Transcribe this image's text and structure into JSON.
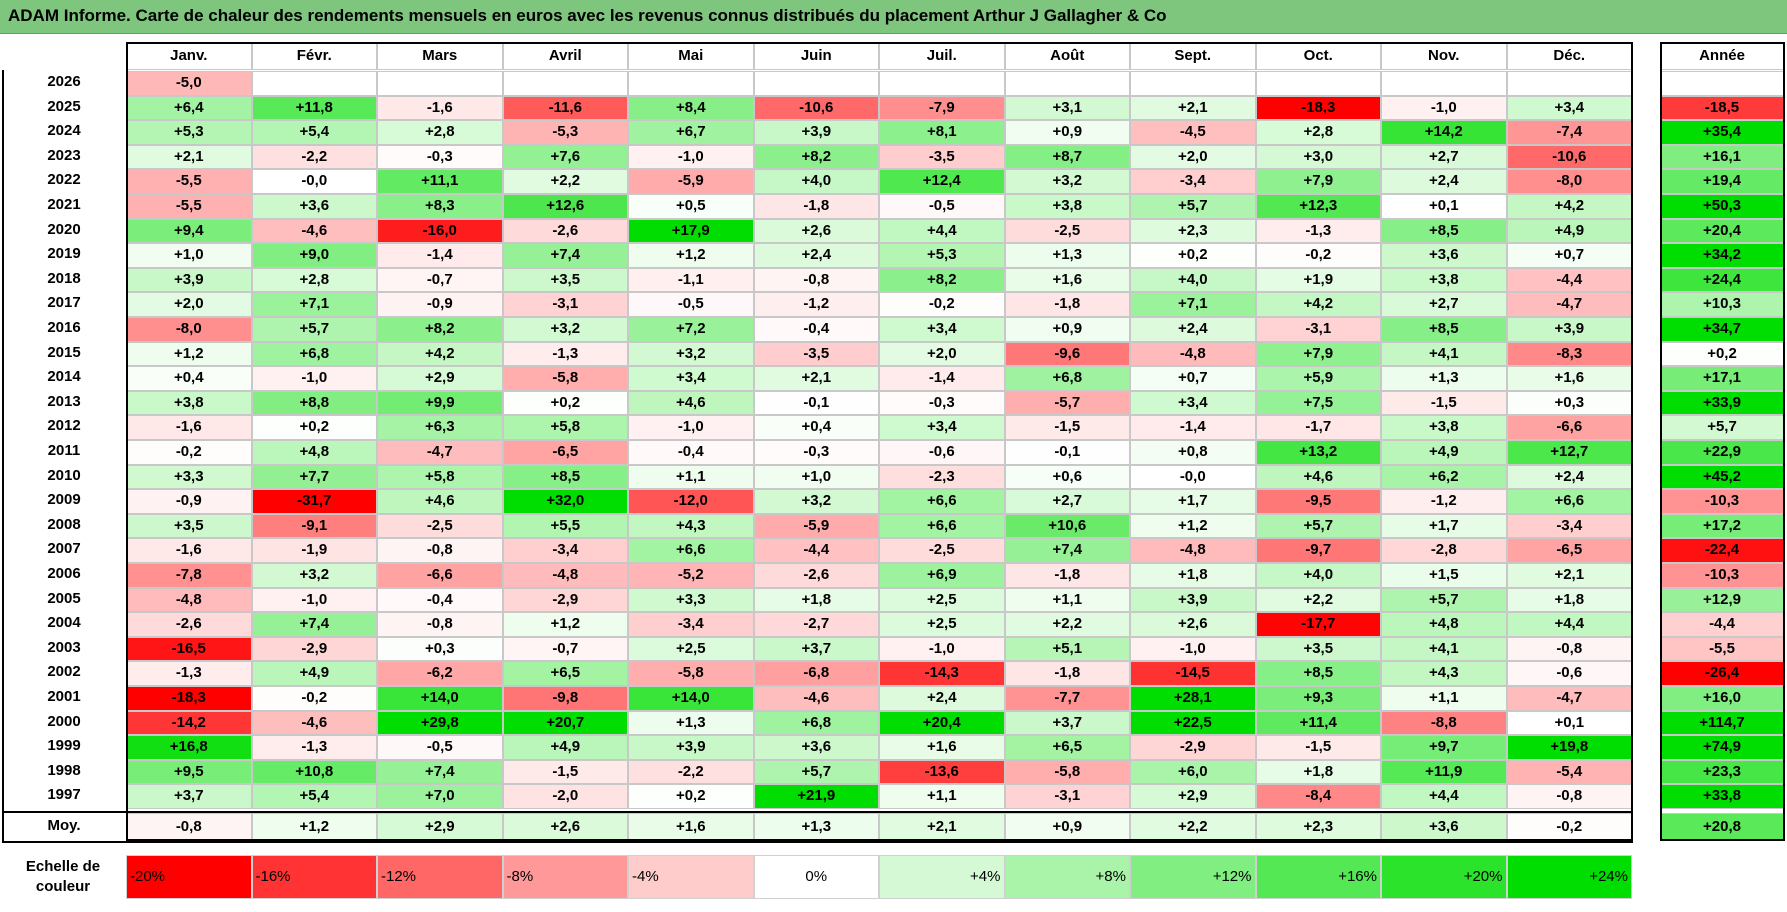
{
  "title": "ADAM Informe. Carte de chaleur des rendements mensuels en euros avec les revenus connus distribués du placement Arthur J Gallagher & Co",
  "chart_data": {
    "type": "heatmap",
    "months": [
      "Janv.",
      "Févr.",
      "Mars",
      "Avril",
      "Mai",
      "Juin",
      "Juil.",
      "Août",
      "Sept.",
      "Oct.",
      "Nov.",
      "Déc."
    ],
    "year_header": "Année",
    "rows": [
      {
        "year": "2026",
        "values": [
          "-5,0",
          "",
          "",
          "",
          "",
          "",
          "",
          "",
          "",
          "",
          "",
          ""
        ],
        "annual": ""
      },
      {
        "year": "2025",
        "values": [
          "+6,4",
          "+11,8",
          "-1,6",
          "-11,6",
          "+8,4",
          "-10,6",
          "-7,9",
          "+3,1",
          "+2,1",
          "-18,3",
          "-1,0",
          "+3,4"
        ],
        "annual": "-18,5"
      },
      {
        "year": "2024",
        "values": [
          "+5,3",
          "+5,4",
          "+2,8",
          "-5,3",
          "+6,7",
          "+3,9",
          "+8,1",
          "+0,9",
          "-4,5",
          "+2,8",
          "+14,2",
          "-7,4"
        ],
        "annual": "+35,4"
      },
      {
        "year": "2023",
        "values": [
          "+2,1",
          "-2,2",
          "-0,3",
          "+7,6",
          "-1,0",
          "+8,2",
          "-3,5",
          "+8,7",
          "+2,0",
          "+3,0",
          "+2,7",
          "-10,6"
        ],
        "annual": "+16,1"
      },
      {
        "year": "2022",
        "values": [
          "-5,5",
          "-0,0",
          "+11,1",
          "+2,2",
          "-5,9",
          "+4,0",
          "+12,4",
          "+3,2",
          "-3,4",
          "+7,9",
          "+2,4",
          "-8,0"
        ],
        "annual": "+19,4"
      },
      {
        "year": "2021",
        "values": [
          "-5,5",
          "+3,6",
          "+8,3",
          "+12,6",
          "+0,5",
          "-1,8",
          "-0,5",
          "+3,8",
          "+5,7",
          "+12,3",
          "+0,1",
          "+4,2"
        ],
        "annual": "+50,3"
      },
      {
        "year": "2020",
        "values": [
          "+9,4",
          "-4,6",
          "-16,0",
          "-2,6",
          "+17,9",
          "+2,6",
          "+4,4",
          "-2,5",
          "+2,3",
          "-1,3",
          "+8,5",
          "+4,9"
        ],
        "annual": "+20,4"
      },
      {
        "year": "2019",
        "values": [
          "+1,0",
          "+9,0",
          "-1,4",
          "+7,4",
          "+1,2",
          "+2,4",
          "+5,3",
          "+1,3",
          "+0,2",
          "-0,2",
          "+3,6",
          "+0,7"
        ],
        "annual": "+34,2"
      },
      {
        "year": "2018",
        "values": [
          "+3,9",
          "+2,8",
          "-0,7",
          "+3,5",
          "-1,1",
          "-0,8",
          "+8,2",
          "+1,6",
          "+4,0",
          "+1,9",
          "+3,8",
          "-4,4"
        ],
        "annual": "+24,4"
      },
      {
        "year": "2017",
        "values": [
          "+2,0",
          "+7,1",
          "-0,9",
          "-3,1",
          "-0,5",
          "-1,2",
          "-0,2",
          "-1,8",
          "+7,1",
          "+4,2",
          "+2,7",
          "-4,7"
        ],
        "annual": "+10,3"
      },
      {
        "year": "2016",
        "values": [
          "-8,0",
          "+5,7",
          "+8,2",
          "+3,2",
          "+7,2",
          "-0,4",
          "+3,4",
          "+0,9",
          "+2,4",
          "-3,1",
          "+8,5",
          "+3,9"
        ],
        "annual": "+34,7"
      },
      {
        "year": "2015",
        "values": [
          "+1,2",
          "+6,8",
          "+4,2",
          "-1,3",
          "+3,2",
          "-3,5",
          "+2,0",
          "-9,6",
          "-4,8",
          "+7,9",
          "+4,1",
          "-8,3"
        ],
        "annual": "+0,2"
      },
      {
        "year": "2014",
        "values": [
          "+0,4",
          "-1,0",
          "+2,9",
          "-5,8",
          "+3,4",
          "+2,1",
          "-1,4",
          "+6,8",
          "+0,7",
          "+5,9",
          "+1,3",
          "+1,6"
        ],
        "annual": "+17,1"
      },
      {
        "year": "2013",
        "values": [
          "+3,8",
          "+8,8",
          "+9,9",
          "+0,2",
          "+4,6",
          "-0,1",
          "-0,3",
          "-5,7",
          "+3,4",
          "+7,5",
          "-1,5",
          "+0,3"
        ],
        "annual": "+33,9"
      },
      {
        "year": "2012",
        "values": [
          "-1,6",
          "+0,2",
          "+6,3",
          "+5,8",
          "-1,0",
          "+0,4",
          "+3,4",
          "-1,5",
          "-1,4",
          "-1,7",
          "+3,8",
          "-6,6"
        ],
        "annual": "+5,7"
      },
      {
        "year": "2011",
        "values": [
          "-0,2",
          "+4,8",
          "-4,7",
          "-6,5",
          "-0,4",
          "-0,3",
          "-0,6",
          "-0,1",
          "+0,8",
          "+13,2",
          "+4,9",
          "+12,7"
        ],
        "annual": "+22,9"
      },
      {
        "year": "2010",
        "values": [
          "+3,3",
          "+7,7",
          "+5,8",
          "+8,5",
          "+1,1",
          "+1,0",
          "-2,3",
          "+0,6",
          "-0,0",
          "+4,6",
          "+6,2",
          "+2,4"
        ],
        "annual": "+45,2"
      },
      {
        "year": "2009",
        "values": [
          "-0,9",
          "-31,7",
          "+4,6",
          "+32,0",
          "-12,0",
          "+3,2",
          "+6,6",
          "+2,7",
          "+1,7",
          "-9,5",
          "-1,2",
          "+6,6"
        ],
        "annual": "-10,3"
      },
      {
        "year": "2008",
        "values": [
          "+3,5",
          "-9,1",
          "-2,5",
          "+5,5",
          "+4,3",
          "-5,9",
          "+6,6",
          "+10,6",
          "+1,2",
          "+5,7",
          "+1,7",
          "-3,4"
        ],
        "annual": "+17,2"
      },
      {
        "year": "2007",
        "values": [
          "-1,6",
          "-1,9",
          "-0,8",
          "-3,4",
          "+6,6",
          "-4,4",
          "-2,5",
          "+7,4",
          "-4,8",
          "-9,7",
          "-2,8",
          "-6,5"
        ],
        "annual": "-22,4"
      },
      {
        "year": "2006",
        "values": [
          "-7,8",
          "+3,2",
          "-6,6",
          "-4,8",
          "-5,2",
          "-2,6",
          "+6,9",
          "-1,8",
          "+1,8",
          "+4,0",
          "+1,5",
          "+2,1"
        ],
        "annual": "-10,3"
      },
      {
        "year": "2005",
        "values": [
          "-4,8",
          "-1,0",
          "-0,4",
          "-2,9",
          "+3,3",
          "+1,8",
          "+2,5",
          "+1,1",
          "+3,9",
          "+2,2",
          "+5,7",
          "+1,8"
        ],
        "annual": "+12,9"
      },
      {
        "year": "2004",
        "values": [
          "-2,6",
          "+7,4",
          "-0,8",
          "+1,2",
          "-3,4",
          "-2,7",
          "+2,5",
          "+2,2",
          "+2,6",
          "-17,7",
          "+4,8",
          "+4,4"
        ],
        "annual": "-4,4"
      },
      {
        "year": "2003",
        "values": [
          "-16,5",
          "-2,9",
          "+0,3",
          "-0,7",
          "+2,5",
          "+3,7",
          "-1,0",
          "+5,1",
          "-1,0",
          "+3,5",
          "+4,1",
          "-0,8"
        ],
        "annual": "-5,5"
      },
      {
        "year": "2002",
        "values": [
          "-1,3",
          "+4,9",
          "-6,2",
          "+6,5",
          "-5,8",
          "-6,8",
          "-14,3",
          "-1,8",
          "-14,5",
          "+8,5",
          "+4,3",
          "-0,6"
        ],
        "annual": "-26,4"
      },
      {
        "year": "2001",
        "values": [
          "-18,3",
          "-0,2",
          "+14,0",
          "-9,8",
          "+14,0",
          "-4,6",
          "+2,4",
          "-7,7",
          "+28,1",
          "+9,3",
          "+1,1",
          "-4,7"
        ],
        "annual": "+16,0"
      },
      {
        "year": "2000",
        "values": [
          "-14,2",
          "-4,6",
          "+29,8",
          "+20,7",
          "+1,3",
          "+6,8",
          "+20,4",
          "+3,7",
          "+22,5",
          "+11,4",
          "-8,8",
          "+0,1"
        ],
        "annual": "+114,7"
      },
      {
        "year": "1999",
        "values": [
          "+16,8",
          "-1,3",
          "-0,5",
          "+4,9",
          "+3,9",
          "+3,6",
          "+1,6",
          "+6,5",
          "-2,9",
          "-1,5",
          "+9,7",
          "+19,8"
        ],
        "annual": "+74,9"
      },
      {
        "year": "1998",
        "values": [
          "+9,5",
          "+10,8",
          "+7,4",
          "-1,5",
          "-2,2",
          "+5,7",
          "-13,6",
          "-5,8",
          "+6,0",
          "+1,8",
          "+11,9",
          "-5,4"
        ],
        "annual": "+23,3"
      },
      {
        "year": "1997",
        "values": [
          "+3,7",
          "+5,4",
          "+7,0",
          "-2,0",
          "+0,2",
          "+21,9",
          "+1,1",
          "-3,1",
          "+2,9",
          "-8,4",
          "+4,4",
          "-0,8"
        ],
        "annual": "+33,8"
      }
    ],
    "average": {
      "label": "Moy.",
      "values": [
        "-0,8",
        "+1,2",
        "+2,9",
        "+2,6",
        "+1,6",
        "+1,3",
        "+2,1",
        "+0,9",
        "+2,2",
        "+2,3",
        "+3,6",
        "-0,2"
      ],
      "annual": "+20,8"
    },
    "scale": {
      "label_line1": "Echelle de",
      "label_line2": "couleur",
      "steps": [
        "-20%",
        "-16%",
        "-12%",
        "-8%",
        "-4%",
        "0%",
        "+4%",
        "+8%",
        "+12%",
        "+16%",
        "+20%",
        "+24%"
      ],
      "step_values": [
        -20,
        -16,
        -12,
        -8,
        -4,
        0,
        4,
        8,
        12,
        16,
        20,
        24
      ]
    },
    "colors": {
      "negative": "#ff0000",
      "neutral": "#ffffff",
      "positive": "#00dd00",
      "title_bg": "#7ec57e"
    }
  }
}
